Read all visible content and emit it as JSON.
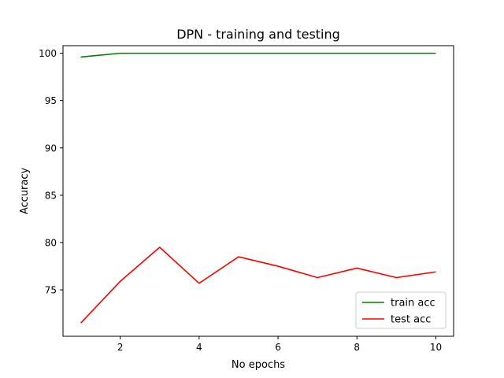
{
  "chart_data": {
    "type": "line",
    "title": "DPN - training and testing",
    "xlabel": "No epochs",
    "ylabel": "Accuracy",
    "xlim": [
      0.55,
      10.45
    ],
    "ylim": [
      70.1,
      100.8
    ],
    "xticks": [
      2,
      4,
      6,
      8,
      10
    ],
    "yticks": [
      75,
      80,
      85,
      90,
      95,
      100
    ],
    "grid": false,
    "legend_position": "bottom-right",
    "x": [
      1,
      2,
      3,
      4,
      5,
      6,
      7,
      8,
      9,
      10
    ],
    "series": [
      {
        "name": "train acc",
        "color": "#008000",
        "values": [
          99.6,
          100.0,
          100.0,
          100.0,
          100.0,
          100.0,
          100.0,
          100.0,
          100.0,
          100.0
        ]
      },
      {
        "name": "test acc",
        "color": "#ff0000",
        "values": [
          71.5,
          75.9,
          79.5,
          75.7,
          78.5,
          77.5,
          76.3,
          77.3,
          76.3,
          76.9
        ]
      }
    ]
  }
}
